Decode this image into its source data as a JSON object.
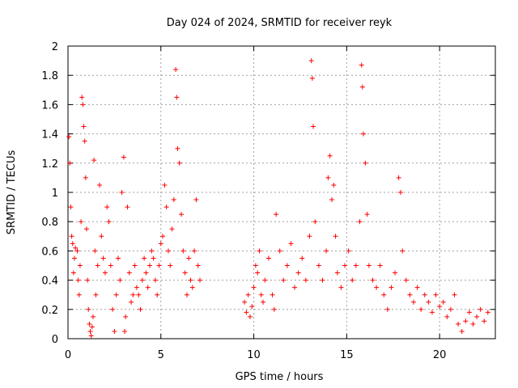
{
  "chart_data": {
    "type": "scatter",
    "title": "Day 024 of 2024, SRMTID for receiver reyk",
    "xlabel": "GPS time / hours",
    "ylabel": "SRMTID / TECUs",
    "xlim": [
      0,
      23
    ],
    "ylim": [
      0,
      2
    ],
    "xticks": [
      0,
      5,
      10,
      15,
      20
    ],
    "yticks": [
      0,
      0.2,
      0.4,
      0.6,
      0.8,
      1,
      1.2,
      1.4,
      1.6,
      1.8,
      2
    ],
    "ytick_labels": [
      "0",
      "0.2",
      "0.4",
      "0.6",
      "0.8",
      "1",
      "1.2",
      "1.4",
      "1.6",
      "1.8",
      "2"
    ],
    "grid": true,
    "marker": "+",
    "color": "#ff0000",
    "series": [
      {
        "name": "SRMTID",
        "points": [
          [
            0.05,
            1.38
          ],
          [
            0.1,
            1.2
          ],
          [
            0.15,
            0.9
          ],
          [
            0.2,
            0.7
          ],
          [
            0.25,
            0.65
          ],
          [
            0.3,
            0.45
          ],
          [
            0.35,
            0.55
          ],
          [
            0.4,
            0.62
          ],
          [
            0.5,
            0.6
          ],
          [
            0.55,
            0.4
          ],
          [
            0.6,
            0.3
          ],
          [
            0.65,
            0.5
          ],
          [
            0.7,
            0.8
          ],
          [
            0.75,
            1.65
          ],
          [
            0.8,
            1.6
          ],
          [
            0.85,
            1.45
          ],
          [
            0.9,
            1.35
          ],
          [
            0.95,
            1.1
          ],
          [
            1.0,
            0.75
          ],
          [
            1.05,
            0.4
          ],
          [
            1.1,
            0.2
          ],
          [
            1.15,
            0.1
          ],
          [
            1.2,
            0.05
          ],
          [
            1.25,
            0.02
          ],
          [
            1.3,
            0.08
          ],
          [
            1.35,
            0.15
          ],
          [
            1.4,
            1.22
          ],
          [
            1.45,
            0.6
          ],
          [
            1.5,
            0.3
          ],
          [
            1.6,
            0.5
          ],
          [
            1.7,
            1.05
          ],
          [
            1.8,
            0.7
          ],
          [
            1.9,
            0.55
          ],
          [
            2.0,
            0.45
          ],
          [
            2.1,
            0.9
          ],
          [
            2.2,
            0.8
          ],
          [
            2.3,
            0.5
          ],
          [
            2.4,
            0.2
          ],
          [
            2.5,
            0.05
          ],
          [
            2.6,
            0.3
          ],
          [
            2.7,
            0.55
          ],
          [
            2.8,
            0.4
          ],
          [
            2.9,
            1.0
          ],
          [
            3.0,
            1.24
          ],
          [
            3.05,
            0.05
          ],
          [
            3.1,
            0.15
          ],
          [
            3.2,
            0.9
          ],
          [
            3.3,
            0.45
          ],
          [
            3.4,
            0.25
          ],
          [
            3.5,
            0.3
          ],
          [
            3.6,
            0.5
          ],
          [
            3.7,
            0.35
          ],
          [
            3.8,
            0.3
          ],
          [
            3.9,
            0.2
          ],
          [
            4.0,
            0.4
          ],
          [
            4.1,
            0.55
          ],
          [
            4.2,
            0.45
          ],
          [
            4.3,
            0.35
          ],
          [
            4.4,
            0.5
          ],
          [
            4.5,
            0.6
          ],
          [
            4.6,
            0.55
          ],
          [
            4.7,
            0.4
          ],
          [
            4.8,
            0.3
          ],
          [
            4.9,
            0.5
          ],
          [
            5.0,
            0.65
          ],
          [
            5.1,
            0.7
          ],
          [
            5.2,
            1.05
          ],
          [
            5.3,
            0.9
          ],
          [
            5.4,
            0.6
          ],
          [
            5.5,
            0.5
          ],
          [
            5.6,
            0.75
          ],
          [
            5.7,
            0.95
          ],
          [
            5.8,
            1.84
          ],
          [
            5.85,
            1.65
          ],
          [
            5.9,
            1.3
          ],
          [
            6.0,
            1.2
          ],
          [
            6.1,
            0.85
          ],
          [
            6.2,
            0.6
          ],
          [
            6.3,
            0.45
          ],
          [
            6.4,
            0.3
          ],
          [
            6.5,
            0.55
          ],
          [
            6.6,
            0.4
          ],
          [
            6.7,
            0.35
          ],
          [
            6.8,
            0.6
          ],
          [
            6.9,
            0.95
          ],
          [
            7.0,
            0.5
          ],
          [
            7.1,
            0.4
          ],
          [
            9.5,
            0.25
          ],
          [
            9.6,
            0.18
          ],
          [
            9.7,
            0.3
          ],
          [
            9.8,
            0.15
          ],
          [
            9.9,
            0.22
          ],
          [
            10.0,
            0.35
          ],
          [
            10.1,
            0.5
          ],
          [
            10.2,
            0.45
          ],
          [
            10.3,
            0.6
          ],
          [
            10.4,
            0.3
          ],
          [
            10.5,
            0.25
          ],
          [
            10.6,
            0.4
          ],
          [
            10.8,
            0.55
          ],
          [
            11.0,
            0.3
          ],
          [
            11.1,
            0.2
          ],
          [
            11.2,
            0.85
          ],
          [
            11.4,
            0.6
          ],
          [
            11.6,
            0.4
          ],
          [
            11.8,
            0.5
          ],
          [
            12.0,
            0.65
          ],
          [
            12.2,
            0.35
          ],
          [
            12.4,
            0.45
          ],
          [
            12.6,
            0.55
          ],
          [
            12.8,
            0.4
          ],
          [
            13.0,
            0.7
          ],
          [
            13.1,
            1.9
          ],
          [
            13.15,
            1.78
          ],
          [
            13.2,
            1.45
          ],
          [
            13.3,
            0.8
          ],
          [
            13.5,
            0.5
          ],
          [
            13.7,
            0.4
          ],
          [
            13.9,
            0.6
          ],
          [
            14.0,
            1.1
          ],
          [
            14.1,
            1.25
          ],
          [
            14.2,
            0.95
          ],
          [
            14.3,
            1.05
          ],
          [
            14.4,
            0.7
          ],
          [
            14.5,
            0.45
          ],
          [
            14.7,
            0.35
          ],
          [
            14.9,
            0.5
          ],
          [
            15.1,
            0.6
          ],
          [
            15.3,
            0.4
          ],
          [
            15.5,
            0.5
          ],
          [
            15.7,
            0.8
          ],
          [
            15.8,
            1.87
          ],
          [
            15.85,
            1.72
          ],
          [
            15.9,
            1.4
          ],
          [
            16.0,
            1.2
          ],
          [
            16.1,
            0.85
          ],
          [
            16.2,
            0.5
          ],
          [
            16.4,
            0.4
          ],
          [
            16.6,
            0.35
          ],
          [
            16.8,
            0.5
          ],
          [
            17.0,
            0.3
          ],
          [
            17.2,
            0.2
          ],
          [
            17.4,
            0.35
          ],
          [
            17.6,
            0.45
          ],
          [
            17.8,
            1.1
          ],
          [
            17.9,
            1.0
          ],
          [
            18.0,
            0.6
          ],
          [
            18.2,
            0.4
          ],
          [
            18.4,
            0.3
          ],
          [
            18.6,
            0.25
          ],
          [
            18.8,
            0.35
          ],
          [
            19.0,
            0.2
          ],
          [
            19.2,
            0.3
          ],
          [
            19.4,
            0.25
          ],
          [
            19.6,
            0.18
          ],
          [
            19.8,
            0.3
          ],
          [
            20.0,
            0.22
          ],
          [
            20.2,
            0.25
          ],
          [
            20.4,
            0.15
          ],
          [
            20.6,
            0.2
          ],
          [
            20.8,
            0.3
          ],
          [
            21.0,
            0.1
          ],
          [
            21.2,
            0.05
          ],
          [
            21.4,
            0.12
          ],
          [
            21.6,
            0.18
          ],
          [
            21.8,
            0.1
          ],
          [
            22.0,
            0.15
          ],
          [
            22.2,
            0.2
          ],
          [
            22.4,
            0.12
          ],
          [
            22.6,
            0.18
          ]
        ]
      }
    ]
  }
}
